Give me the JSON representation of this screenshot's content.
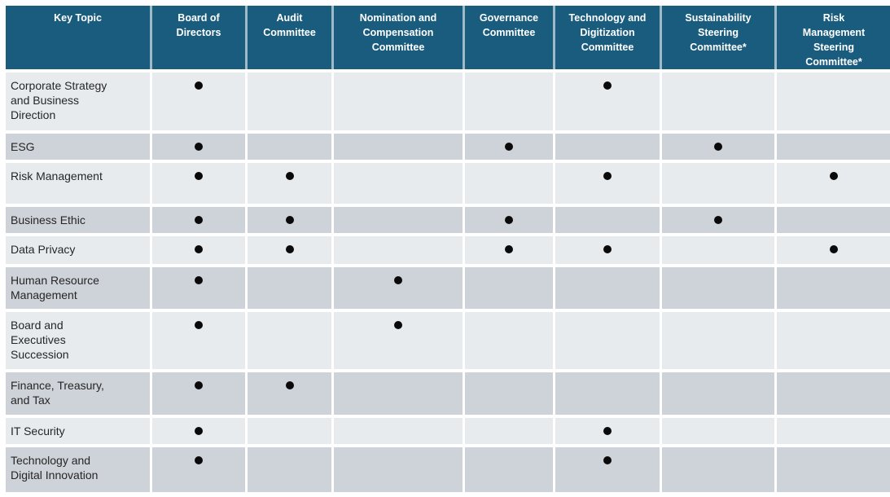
{
  "colors": {
    "header_bg": "#1A5C7E",
    "header_text": "#FFFFFF",
    "header_gridline": "#9FB9C6",
    "row_dark": "#CED3D9",
    "row_light": "#E8EBEE",
    "body_text": "#262626",
    "bullet": "#0A0A0A",
    "page_background": "#FFFFFF"
  },
  "table": {
    "bullet_glyph": "●",
    "columns": [
      {
        "id": "key_topic",
        "label": "Key Topic"
      },
      {
        "id": "board_of_directors",
        "label": "Board of\nDirectors"
      },
      {
        "id": "audit_committee",
        "label": "Audit\nCommittee"
      },
      {
        "id": "nomination_and_compensation_committee",
        "label": "Nomination and\nCompensation\nCommittee"
      },
      {
        "id": "governance_committee",
        "label": "Governance\nCommittee"
      },
      {
        "id": "technology_and_digitization_committee",
        "label": "Technology and\nDigitization\nCommittee"
      },
      {
        "id": "sustainability_steering_committee",
        "label": "Sustainability\nSteering\nCommittee*"
      },
      {
        "id": "risk_management_steering_committee",
        "label": "Risk\nManagement\nSteering\nCommittee*"
      }
    ],
    "rows": [
      {
        "topic": "Corporate Strategy\nand Business\nDirection",
        "marks": [
          1,
          0,
          0,
          0,
          1,
          0,
          0
        ]
      },
      {
        "topic": "ESG",
        "marks": [
          1,
          0,
          0,
          1,
          0,
          1,
          0
        ]
      },
      {
        "topic": "Risk Management",
        "marks": [
          1,
          1,
          0,
          0,
          1,
          0,
          1
        ]
      },
      {
        "topic": "Business Ethic",
        "marks": [
          1,
          1,
          0,
          1,
          0,
          1,
          0
        ]
      },
      {
        "topic": "Data Privacy",
        "marks": [
          1,
          1,
          0,
          1,
          1,
          0,
          1
        ]
      },
      {
        "topic": "Human Resource\nManagement",
        "marks": [
          1,
          0,
          1,
          0,
          0,
          0,
          0
        ]
      },
      {
        "topic": "Board and\nExecutives\nSuccession",
        "marks": [
          1,
          0,
          1,
          0,
          0,
          0,
          0
        ]
      },
      {
        "topic": "Finance, Treasury,\nand Tax",
        "marks": [
          1,
          1,
          0,
          0,
          0,
          0,
          0
        ]
      },
      {
        "topic": "IT Security",
        "marks": [
          1,
          0,
          0,
          0,
          1,
          0,
          0
        ]
      },
      {
        "topic": "Technology and\nDigital Innovation",
        "marks": [
          1,
          0,
          0,
          0,
          1,
          0,
          0
        ]
      }
    ]
  }
}
